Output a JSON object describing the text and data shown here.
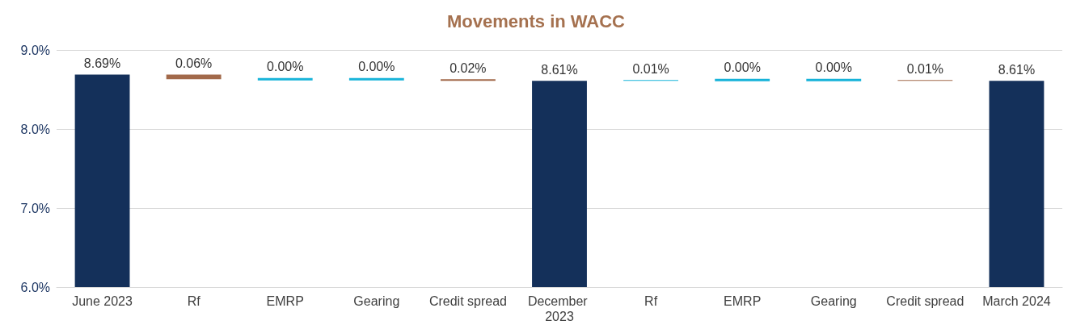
{
  "chart_data": {
    "type": "bar",
    "title": "Movements in WACC",
    "categories": [
      "June 2023",
      "Rf",
      "EMRP",
      "Gearing",
      "Credit spread",
      "December 2023",
      "Rf",
      "EMRP",
      "Gearing",
      "Credit spread",
      "March 2024"
    ],
    "values": [
      8.69,
      -0.06,
      0,
      0,
      -0.02,
      8.61,
      0.01,
      0,
      0,
      -0.01,
      8.61
    ],
    "base": [
      null,
      8.69,
      8.63,
      8.63,
      8.63,
      null,
      8.61,
      8.62,
      8.62,
      8.62,
      null
    ],
    "value_labels": [
      "8.69%",
      "0.06%",
      "0.00%",
      "0.00%",
      "0.02%",
      "8.61%",
      "0.01%",
      "0.00%",
      "0.00%",
      "0.01%",
      "8.61%"
    ],
    "colors": [
      "#14305a",
      "#a2694a",
      "#17b3d9",
      "#17b3d9",
      "#a2694a",
      "#14305a",
      "#17b3d9",
      "#17b3d9",
      "#17b3d9",
      "#a2694a",
      "#14305a"
    ],
    "ylim": [
      6,
      9
    ],
    "yticks": [
      {
        "value": 6,
        "label": "6.0%"
      },
      {
        "value": 7,
        "label": "7.0%"
      },
      {
        "value": 8,
        "label": "8.0%"
      },
      {
        "value": 9,
        "label": "9.0%"
      }
    ],
    "grid": "y"
  }
}
